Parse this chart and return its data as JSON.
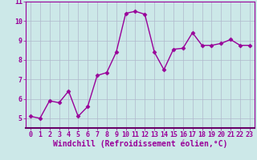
{
  "x": [
    0,
    1,
    2,
    3,
    4,
    5,
    6,
    7,
    8,
    9,
    10,
    11,
    12,
    13,
    14,
    15,
    16,
    17,
    18,
    19,
    20,
    21,
    22,
    23
  ],
  "y": [
    5.1,
    5.0,
    5.9,
    5.8,
    6.4,
    5.1,
    5.6,
    7.2,
    7.35,
    8.4,
    10.4,
    10.5,
    10.35,
    8.4,
    7.5,
    8.55,
    8.6,
    9.4,
    8.75,
    8.75,
    8.85,
    9.05,
    8.75,
    8.75
  ],
  "line_color": "#990099",
  "marker": "D",
  "marker_size": 2.5,
  "background_color": "#cce8e8",
  "grid_color": "#b0b8cc",
  "xlabel": "Windchill (Refroidissement éolien,°C)",
  "xlabel_color": "#990099",
  "xlabel_fontsize": 7,
  "xlim": [
    -0.5,
    23.5
  ],
  "ylim": [
    4.5,
    11.0
  ],
  "yticks": [
    5,
    6,
    7,
    8,
    9,
    10,
    11
  ],
  "xticks": [
    0,
    1,
    2,
    3,
    4,
    5,
    6,
    7,
    8,
    9,
    10,
    11,
    12,
    13,
    14,
    15,
    16,
    17,
    18,
    19,
    20,
    21,
    22,
    23
  ],
  "tick_color": "#990099",
  "tick_fontsize": 6,
  "spine_color": "#990099",
  "spine_bottom_color": "#660066",
  "linewidth": 1.0
}
